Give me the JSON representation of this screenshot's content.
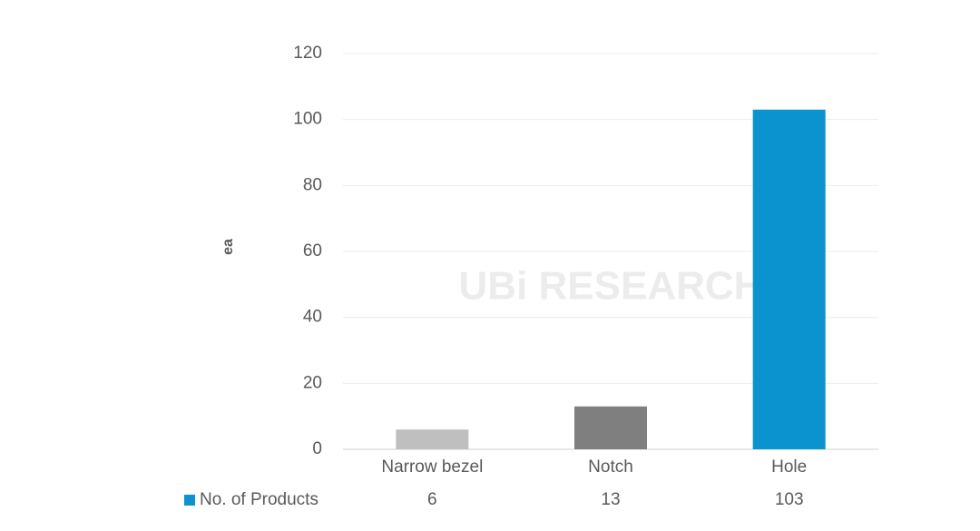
{
  "chart_data": {
    "type": "bar",
    "y_label": "ea",
    "categories": [
      "Narrow bezel",
      "Notch",
      "Hole"
    ],
    "series": [
      {
        "name": "No. of Products",
        "color": "#0b93cf",
        "values": [
          6,
          13,
          103
        ]
      }
    ],
    "bar_colors": [
      "#bfbfbf",
      "#7f7f7f",
      "#0b93cf"
    ],
    "ylim": [
      0,
      120
    ],
    "yticks": [
      0,
      20,
      40,
      60,
      80,
      100,
      120
    ],
    "grid": true,
    "data_table": true,
    "watermark": "UBi RESEARCH"
  }
}
